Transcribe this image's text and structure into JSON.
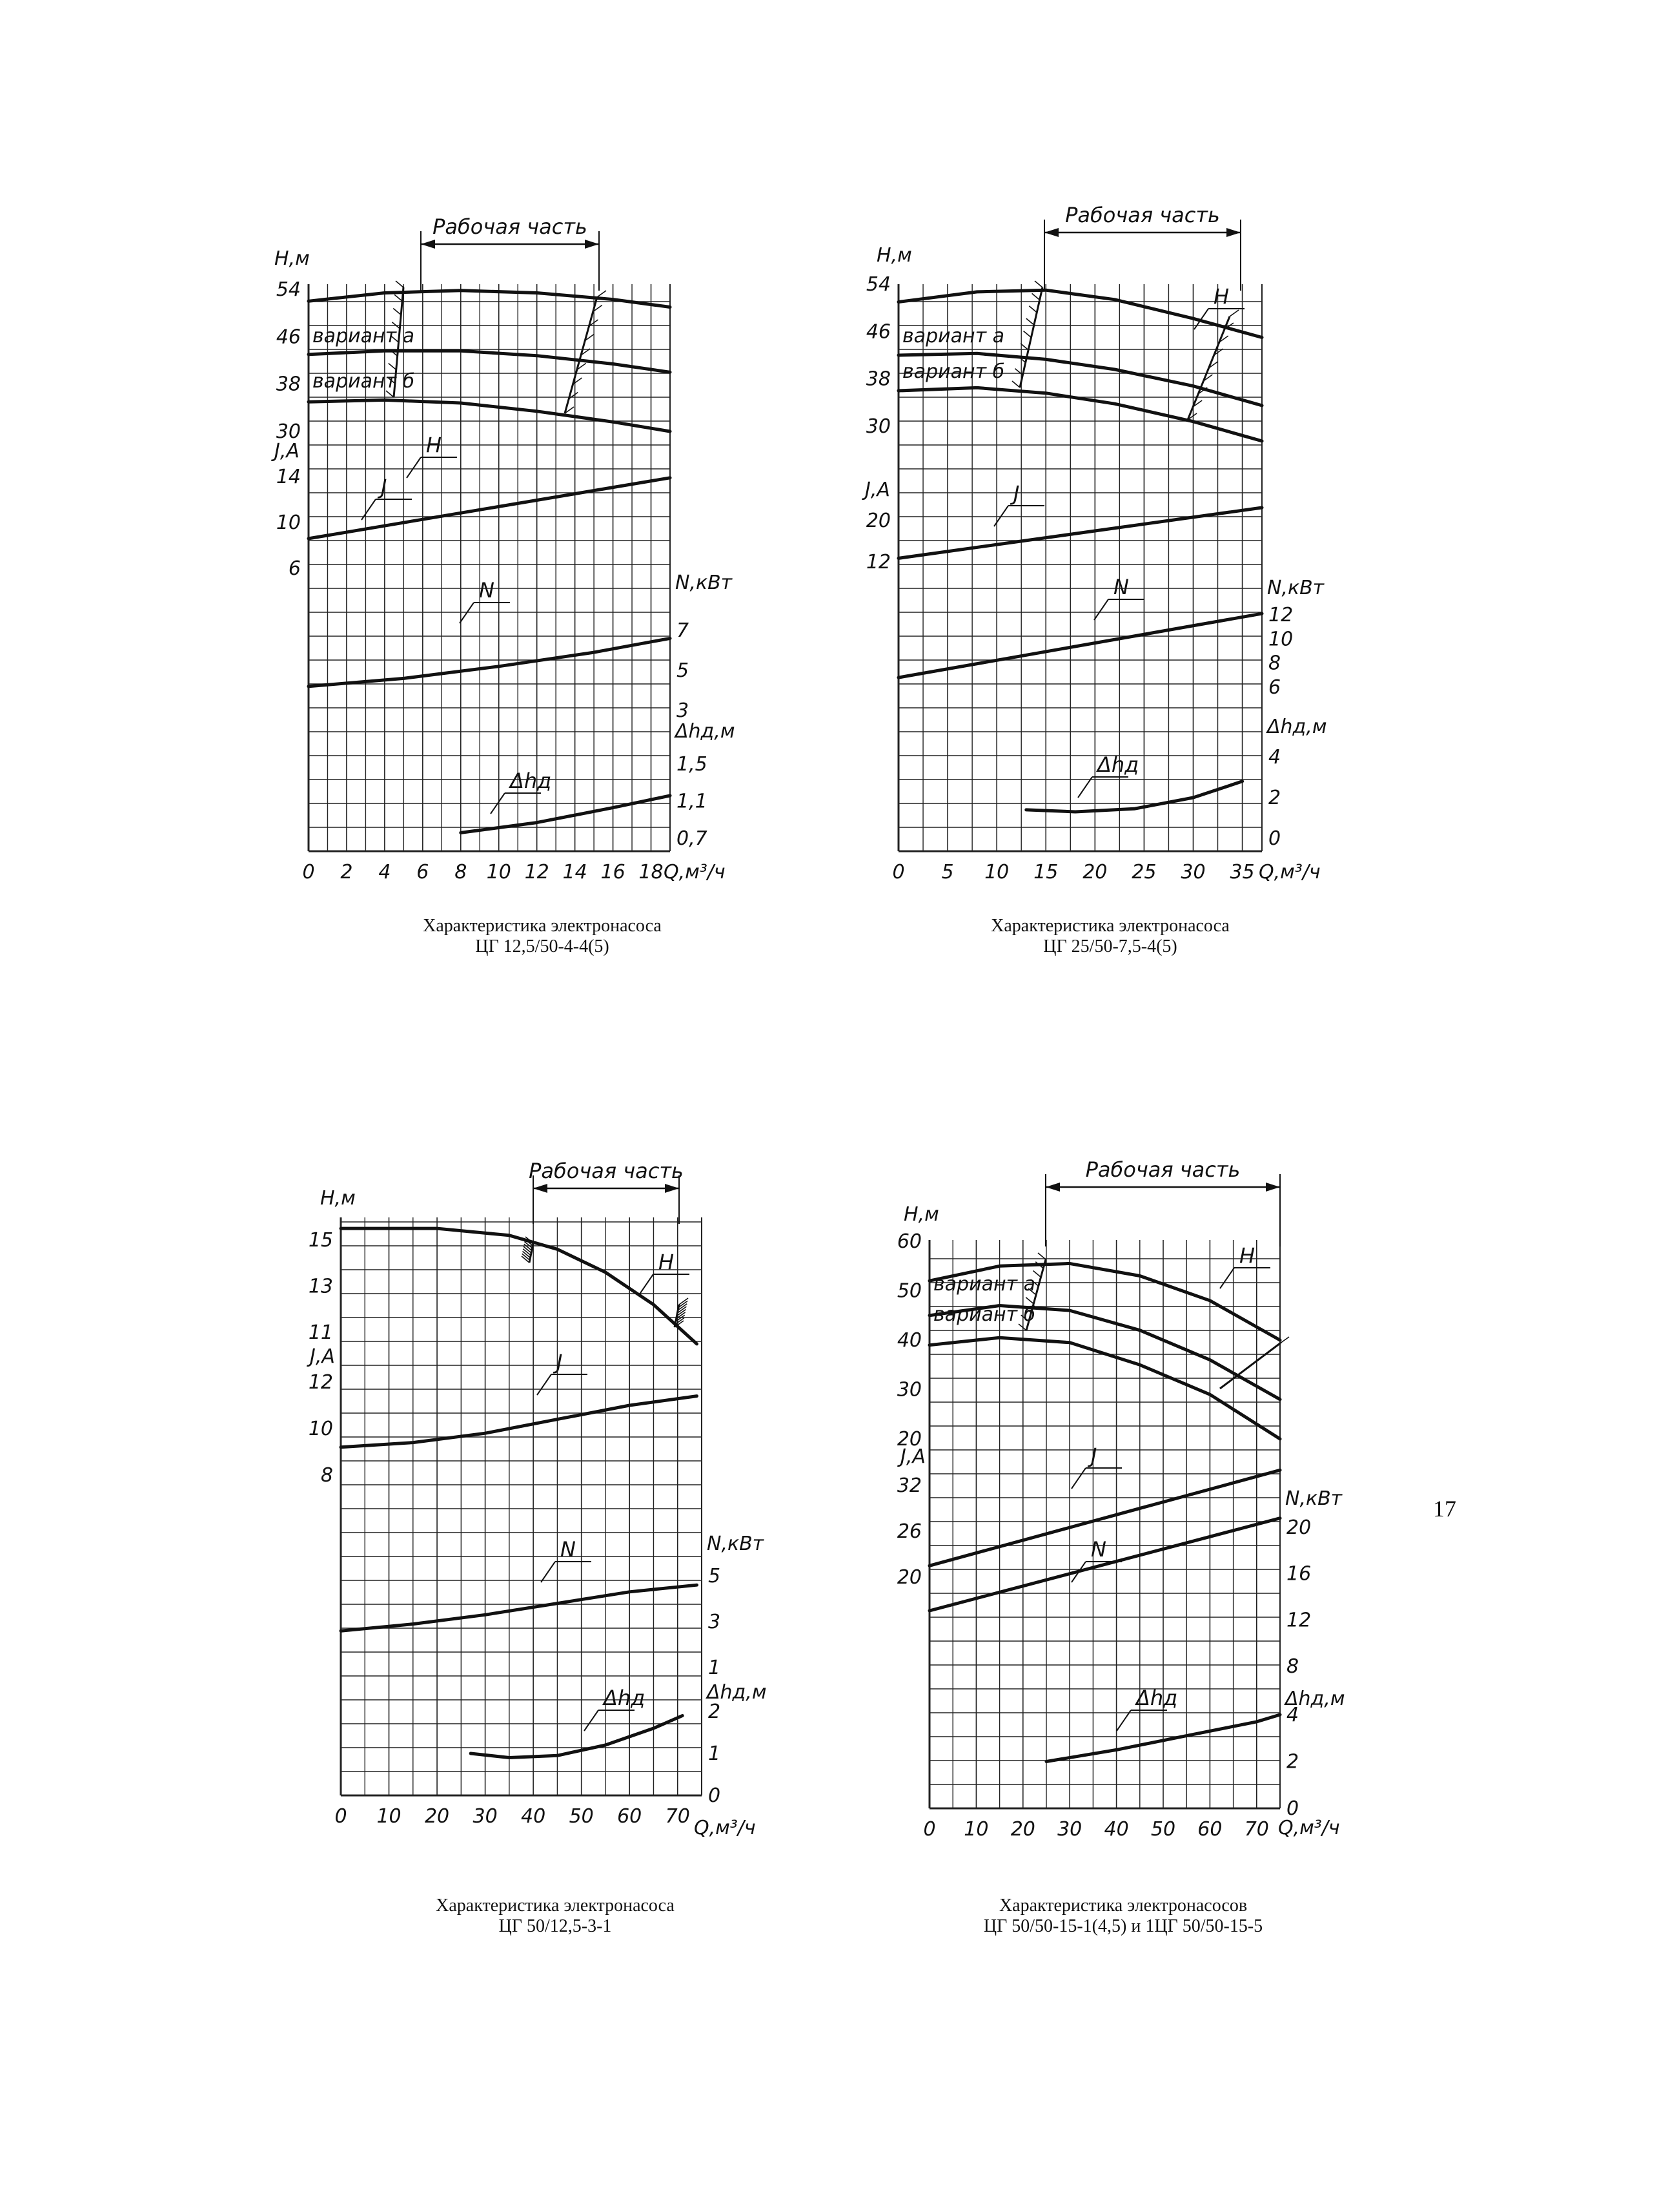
{
  "page_number": "17",
  "panels": [
    {
      "id": "cg-12-5-50",
      "caption_line1": "Характеристика электронасоса",
      "caption_line2": "ЦГ 12,5/50-4-4(5)",
      "working_part_label": "Рабочая часть",
      "working_part_range": [
        6,
        16
      ],
      "variant_labels": [
        "вариант а",
        "вариант б"
      ],
      "curve_letters": {
        "H": "Н",
        "J": "J",
        "N": "N",
        "dh": "Δhд"
      }
    },
    {
      "id": "cg-25-50",
      "caption_line1": "Характеристика электронасоса",
      "caption_line2": "ЦГ 25/50-7,5-4(5)",
      "working_part_label": "Рабочая часть",
      "working_part_range": [
        15,
        35
      ],
      "variant_labels": [
        "вариант а",
        "вариант б"
      ],
      "curve_letters": {
        "H": "Н",
        "J": "J",
        "N": "N",
        "dh": "Δhд"
      }
    },
    {
      "id": "cg-50-12-5",
      "caption_line1": "Характеристика электронасоса",
      "caption_line2": "ЦГ 50/12,5-3-1",
      "working_part_label": "Рабочая часть",
      "working_part_range": [
        40,
        70
      ],
      "variant_labels": [],
      "curve_letters": {
        "H": "Н",
        "J": "J",
        "N": "N",
        "dh": "Δhд"
      }
    },
    {
      "id": "cg-50-50-15",
      "caption_line1": "Характеристика электронасосов",
      "caption_line2": "ЦГ 50/50-15-1(4,5) и 1ЦГ 50/50-15-5",
      "working_part_label": "Рабочая часть",
      "working_part_range": [
        25,
        75
      ],
      "variant_labels": [
        "вариант а",
        "вариант б"
      ],
      "curve_letters": {
        "H": "Н",
        "J": "J",
        "N": "N",
        "dh": "Δhд"
      }
    }
  ],
  "chart_data": [
    {
      "type": "line",
      "x_label": "Q,м³/ч",
      "x_ticks": [
        "0",
        "2",
        "4",
        "6",
        "8",
        "10",
        "12",
        "14",
        "16",
        "18"
      ],
      "axes": {
        "H": {
          "label": "Н,м",
          "ticks": [
            "54",
            "46",
            "38",
            "30"
          ],
          "range": [
            30,
            54
          ]
        },
        "J": {
          "label": "J,A",
          "ticks": [
            "14",
            "10",
            "6"
          ],
          "range": [
            6,
            14
          ]
        },
        "N": {
          "label": "N,кВт",
          "ticks": [
            "7",
            "5",
            "3"
          ],
          "range": [
            3,
            7
          ]
        },
        "dh": {
          "label": "Δhд,м",
          "ticks": [
            "1,5",
            "1,1",
            "0,7"
          ],
          "range": [
            0.7,
            1.5
          ]
        }
      },
      "series": [
        {
          "axis": "H",
          "x": [
            0,
            4,
            8,
            12,
            16,
            19
          ],
          "y": [
            52,
            53.4,
            53.8,
            53.4,
            52.3,
            51
          ]
        },
        {
          "axis": "H",
          "x": [
            0,
            4,
            8,
            12,
            16,
            19
          ],
          "y": [
            43,
            43.6,
            43.6,
            42.8,
            41.4,
            40
          ]
        },
        {
          "axis": "H",
          "x": [
            0,
            4,
            8,
            12,
            16,
            19
          ],
          "y": [
            35,
            35.3,
            34.8,
            33.4,
            31.6,
            30
          ]
        },
        {
          "axis": "J",
          "x": [
            0,
            19
          ],
          "y": [
            8.6,
            13.9
          ]
        },
        {
          "axis": "N",
          "x": [
            0,
            5,
            10,
            15,
            19
          ],
          "y": [
            4.2,
            4.6,
            5.2,
            5.9,
            6.6
          ]
        },
        {
          "axis": "dh",
          "x": [
            8,
            12,
            16,
            19
          ],
          "y": [
            0.76,
            0.87,
            1.03,
            1.16
          ]
        }
      ]
    },
    {
      "type": "line",
      "x_label": "Q,м³/ч",
      "x_ticks": [
        "0",
        "5",
        "10",
        "15",
        "20",
        "25",
        "30",
        "35"
      ],
      "axes": {
        "H": {
          "label": "Н,м",
          "ticks": [
            "54",
            "46",
            "38",
            "30"
          ],
          "range": [
            30,
            54
          ]
        },
        "J": {
          "label": "J,A",
          "ticks": [
            "20",
            "12"
          ],
          "range": [
            12,
            20
          ]
        },
        "N": {
          "label": "N,кВт",
          "ticks": [
            "12",
            "10",
            "8",
            "6"
          ],
          "range": [
            6,
            12
          ]
        },
        "dh": {
          "label": "Δhд,м",
          "ticks": [
            "4",
            "2",
            "0"
          ],
          "range": [
            0,
            4
          ]
        }
      },
      "series": [
        {
          "axis": "H",
          "x": [
            0,
            8,
            15,
            22,
            30,
            37
          ],
          "y": [
            51,
            52.7,
            53,
            51.4,
            48.2,
            45
          ]
        },
        {
          "axis": "H",
          "x": [
            0,
            8,
            15,
            22,
            30,
            37
          ],
          "y": [
            42,
            42.3,
            41.3,
            39.6,
            36.8,
            33.5
          ]
        },
        {
          "axis": "H",
          "x": [
            0,
            8,
            15,
            22,
            30,
            37
          ],
          "y": [
            36,
            36.5,
            35.6,
            33.8,
            30.8,
            27.5
          ]
        },
        {
          "axis": "J",
          "x": [
            0,
            37
          ],
          "y": [
            12.7,
            22.5
          ]
        },
        {
          "axis": "N",
          "x": [
            0,
            37
          ],
          "y": [
            6.8,
            12.1
          ]
        },
        {
          "axis": "dh",
          "x": [
            13,
            18,
            24,
            30,
            35
          ],
          "y": [
            1.4,
            1.3,
            1.45,
            2.0,
            2.8
          ]
        }
      ]
    },
    {
      "type": "line",
      "x_label": "Q,м³/ч",
      "x_ticks": [
        "0",
        "10",
        "20",
        "30",
        "40",
        "50",
        "60",
        "70"
      ],
      "axes": {
        "H": {
          "label": "Н,м",
          "ticks": [
            "15",
            "13",
            "11"
          ],
          "range": [
            11,
            15
          ]
        },
        "J": {
          "label": "J,A",
          "ticks": [
            "12",
            "10",
            "8"
          ],
          "range": [
            8,
            12
          ]
        },
        "N": {
          "label": "N,кВт",
          "ticks": [
            "5",
            "3",
            "1"
          ],
          "range": [
            1,
            5
          ]
        },
        "dh": {
          "label": "Δhд,м",
          "ticks": [
            "2",
            "1",
            "0"
          ],
          "range": [
            0,
            2
          ]
        }
      },
      "series": [
        {
          "axis": "H",
          "x": [
            0,
            20,
            35,
            45,
            55,
            65,
            74
          ],
          "y": [
            15.5,
            15.5,
            15.2,
            14.6,
            13.6,
            12.2,
            10.5
          ]
        },
        {
          "axis": "J",
          "x": [
            0,
            15,
            30,
            45,
            60,
            74
          ],
          "y": [
            9.2,
            9.4,
            9.8,
            10.4,
            11,
            11.4
          ]
        },
        {
          "axis": "N",
          "x": [
            0,
            15,
            30,
            45,
            60,
            74
          ],
          "y": [
            2.6,
            2.9,
            3.3,
            3.8,
            4.3,
            4.6
          ]
        },
        {
          "axis": "dh",
          "x": [
            27,
            35,
            45,
            55,
            65,
            71
          ],
          "y": [
            1.0,
            0.9,
            0.95,
            1.2,
            1.6,
            1.9
          ]
        }
      ]
    },
    {
      "type": "line",
      "x_label": "Q,м³/ч",
      "x_ticks": [
        "0",
        "10",
        "20",
        "30",
        "40",
        "50",
        "60",
        "70"
      ],
      "axes": {
        "H": {
          "label": "Н,м",
          "ticks": [
            "60",
            "50",
            "40",
            "30",
            "20"
          ],
          "range": [
            20,
            60
          ]
        },
        "J": {
          "label": "J,A",
          "ticks": [
            "32",
            "26",
            "20"
          ],
          "range": [
            20,
            32
          ]
        },
        "N": {
          "label": "N,кВт",
          "ticks": [
            "20",
            "16",
            "12",
            "8"
          ],
          "range": [
            8,
            20
          ]
        },
        "dh": {
          "label": "Δhд,м",
          "ticks": [
            "4",
            "2",
            "0"
          ],
          "range": [
            0,
            4
          ]
        }
      },
      "series": [
        {
          "axis": "H",
          "x": [
            0,
            15,
            30,
            45,
            60,
            75
          ],
          "y": [
            52,
            55,
            55.5,
            53,
            48,
            40
          ]
        },
        {
          "axis": "H",
          "x": [
            0,
            15,
            30,
            45,
            60,
            75
          ],
          "y": [
            45,
            47,
            46,
            42,
            36,
            28
          ]
        },
        {
          "axis": "H",
          "x": [
            0,
            15,
            30,
            45,
            60,
            75
          ],
          "y": [
            39,
            40.5,
            39.5,
            35,
            29,
            20
          ]
        },
        {
          "axis": "J",
          "x": [
            0,
            75
          ],
          "y": [
            21.5,
            34
          ]
        },
        {
          "axis": "N",
          "x": [
            0,
            75
          ],
          "y": [
            12.8,
            20.8
          ]
        },
        {
          "axis": "dh",
          "x": [
            25,
            40,
            55,
            70,
            75
          ],
          "y": [
            2.0,
            2.5,
            3.1,
            3.7,
            4.0
          ]
        }
      ]
    }
  ]
}
